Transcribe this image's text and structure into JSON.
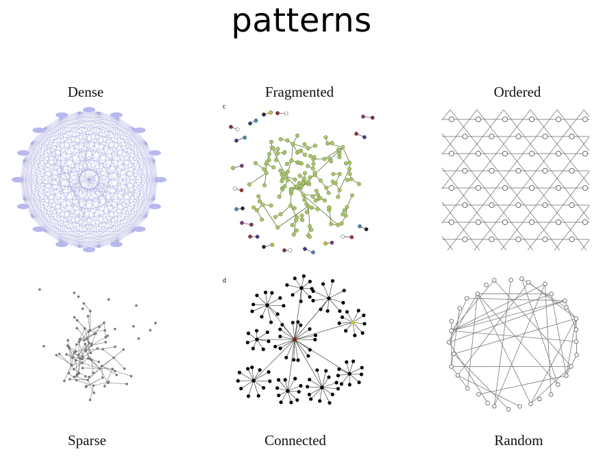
{
  "title": "patterns",
  "panels": [
    {
      "id": "dense",
      "label": "Dense"
    },
    {
      "id": "fragmented",
      "label": "Fragmented"
    },
    {
      "id": "ordered",
      "label": "Ordered"
    },
    {
      "id": "sparse",
      "label": "Sparse"
    },
    {
      "id": "connected",
      "label": "Connected"
    },
    {
      "id": "random",
      "label": "Random"
    }
  ],
  "panel_letters": {
    "fragmented": "c",
    "connected": "d"
  },
  "colors": {
    "dense_edge": "#9a9ad8",
    "dense_node": "#b8b8ee",
    "fragmented_node": "#a9c46b",
    "fragmented_edge": "#556b2f",
    "ordered_line": "#666666",
    "sparse_node": "#777777",
    "connected_node": "#000000",
    "random_line": "#777777"
  }
}
